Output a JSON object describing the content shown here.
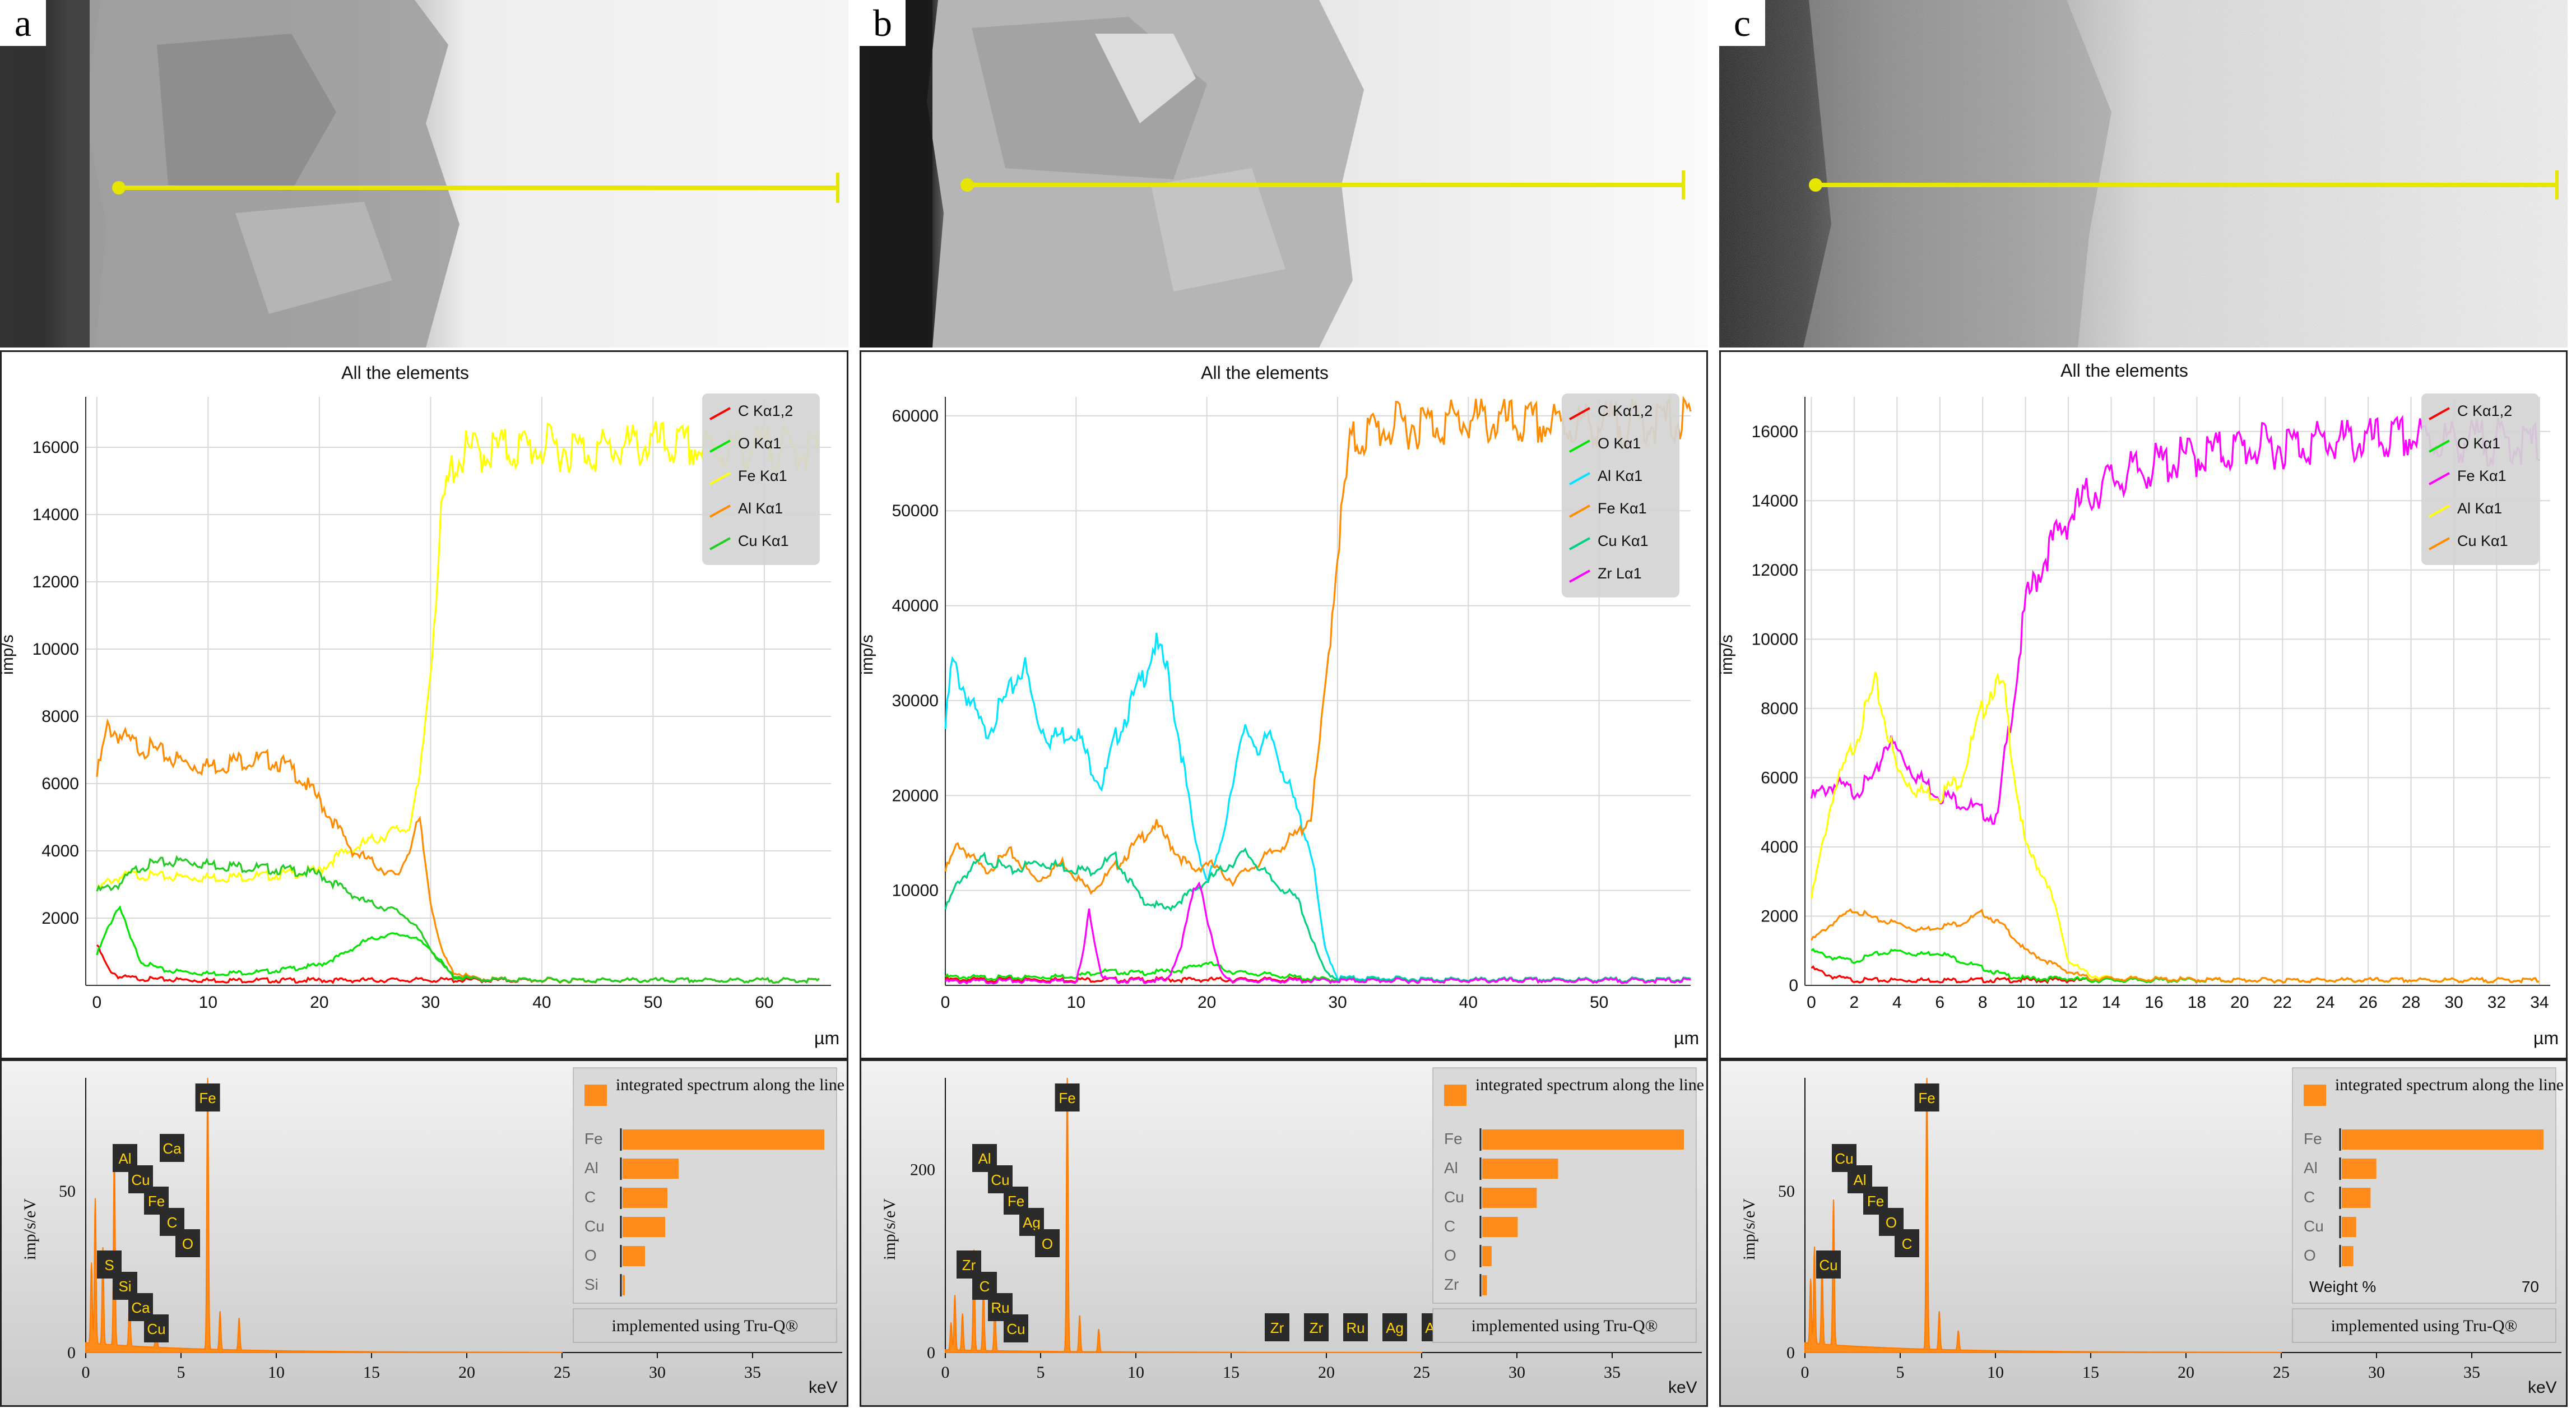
{
  "figure": {
    "panels": [
      {
        "label": "a",
        "chart_title": "All the elements",
        "y_axis_label": "imp/s",
        "x_unit": "µm",
        "x_ticks": [
          0,
          10,
          20,
          30,
          40,
          50,
          60
        ],
        "y_ticks": [
          2000,
          4000,
          6000,
          8000,
          10000,
          12000,
          14000,
          16000
        ],
        "spectrum_y_label": "imp/s/eV",
        "spectrum_y_ticks": [
          0,
          50
        ],
        "spectrum_x_ticks": [
          0,
          5,
          10,
          15,
          20,
          25,
          30,
          35
        ],
        "spectrum_x_unit": "keV",
        "peak_labels": [
          "Fe",
          "Al",
          "Cu",
          "Fe",
          "C",
          "O",
          "S",
          "Si",
          "Ca",
          "Cu",
          "Ca"
        ],
        "inset_title": "integrated spectrum along the line",
        "inset_rows": [
          "Fe",
          "Al",
          "C",
          "Cu",
          "O",
          "Si"
        ],
        "inset_values": [
          90,
          25,
          20,
          19,
          10,
          1
        ],
        "inset_footer": "implemented using Tru-Q®",
        "weight_label": "",
        "weight_max": ""
      },
      {
        "label": "b",
        "chart_title": "All the elements",
        "y_axis_label": "imp/s",
        "x_unit": "µm",
        "x_ticks": [
          0,
          10,
          20,
          30,
          40,
          50
        ],
        "y_ticks": [
          10000,
          20000,
          30000,
          40000,
          50000,
          60000
        ],
        "spectrum_y_label": "imp/s/eV",
        "spectrum_y_ticks": [
          0,
          200
        ],
        "spectrum_x_ticks": [
          0,
          5,
          10,
          15,
          20,
          25,
          30,
          35
        ],
        "spectrum_x_unit": "keV",
        "peak_labels": [
          "Fe",
          "Al",
          "Cu",
          "Fe",
          "Ag",
          "O",
          "Zr",
          "C",
          "Ru",
          "Cu",
          "Zr",
          "Zr",
          "Ru",
          "Ag",
          "Ag"
        ],
        "inset_title": "integrated spectrum along the line",
        "inset_rows": [
          "Fe",
          "Al",
          "Cu",
          "C",
          "O",
          "Zr"
        ],
        "inset_values": [
          85,
          32,
          23,
          15,
          4,
          2
        ],
        "inset_footer": "implemented using Tru-Q®",
        "weight_label": "",
        "weight_max": ""
      },
      {
        "label": "c",
        "chart_title": "All the elements",
        "y_axis_label": "imp/s",
        "x_unit": "µm",
        "x_ticks": [
          0,
          2,
          4,
          6,
          8,
          10,
          12,
          14,
          16,
          18,
          20,
          22,
          24,
          26,
          28,
          30,
          32,
          34
        ],
        "y_ticks": [
          0,
          2000,
          4000,
          6000,
          8000,
          10000,
          12000,
          14000,
          16000
        ],
        "spectrum_y_label": "imp/s/eV",
        "spectrum_y_ticks": [
          0,
          50
        ],
        "spectrum_x_ticks": [
          0,
          5,
          10,
          15,
          20,
          25,
          30,
          35
        ],
        "spectrum_x_unit": "keV",
        "peak_labels": [
          "Fe",
          "Cu",
          "Al",
          "Fe",
          "O",
          "C",
          "Cu"
        ],
        "inset_title": "integrated spectrum along the line",
        "inset_rows": [
          "Fe",
          "Al",
          "C",
          "Cu",
          "O"
        ],
        "inset_values": [
          70,
          12,
          10,
          5,
          4
        ],
        "inset_footer": "implemented using Tru-Q®",
        "weight_label": "Weight %",
        "weight_max": "70"
      }
    ]
  },
  "chart_data": [
    {
      "panel": "a",
      "type": "line",
      "title": "All the elements",
      "xlabel": "µm",
      "ylabel": "imp/s",
      "xlim": [
        -1,
        66
      ],
      "ylim": [
        0,
        17500
      ],
      "legend": "top-right",
      "series": [
        {
          "name": "C Kα1,2",
          "color": "#ff0000",
          "x": [
            0,
            1,
            2,
            5,
            10,
            20,
            30,
            40,
            50,
            65
          ],
          "y": [
            1200,
            500,
            250,
            180,
            150,
            150,
            160,
            150,
            150,
            150
          ]
        },
        {
          "name": "O Kα1",
          "color": "#00e600",
          "x": [
            0,
            1,
            2,
            3,
            4,
            6,
            10,
            15,
            20,
            22,
            24,
            26,
            28,
            30,
            32,
            34,
            40,
            50,
            65
          ],
          "y": [
            900,
            1700,
            2400,
            1400,
            700,
            450,
            350,
            400,
            600,
            900,
            1300,
            1500,
            1500,
            1100,
            250,
            180,
            160,
            150,
            150
          ]
        },
        {
          "name": "Fe Kα1",
          "color": "#ffff00",
          "x": [
            0,
            1,
            3,
            5,
            10,
            15,
            20,
            21,
            22,
            24,
            26,
            28,
            29,
            30,
            31,
            32,
            33,
            35,
            40,
            45,
            50,
            55,
            60,
            65
          ],
          "y": [
            2800,
            3100,
            3300,
            3250,
            3200,
            3250,
            3400,
            3700,
            3900,
            4200,
            4500,
            4700,
            6000,
            9500,
            14000,
            15500,
            15800,
            15900,
            16000,
            15900,
            16100,
            15900,
            16000,
            15900
          ]
        },
        {
          "name": "Al Kα1",
          "color": "#ff8c00",
          "x": [
            0,
            1,
            3,
            5,
            8,
            10,
            13,
            16,
            18,
            20,
            21,
            22,
            23,
            25,
            27,
            28,
            29,
            30,
            31,
            32,
            34,
            40,
            50,
            65
          ],
          "y": [
            6200,
            7700,
            7200,
            7000,
            6600,
            6500,
            6700,
            6700,
            6300,
            5500,
            5000,
            4500,
            4000,
            3600,
            3200,
            4000,
            4900,
            2500,
            1000,
            400,
            200,
            150,
            150,
            150
          ]
        },
        {
          "name": "Cu Kα1",
          "color": "#22cc22",
          "x": [
            0,
            1,
            2,
            3,
            4,
            6,
            8,
            10,
            12,
            14,
            16,
            18,
            20,
            22,
            24,
            26,
            27,
            28,
            29,
            30,
            31,
            32,
            34,
            40,
            50,
            65
          ],
          "y": [
            2800,
            2900,
            3000,
            3300,
            3550,
            3650,
            3700,
            3600,
            3550,
            3500,
            3450,
            3400,
            3300,
            2900,
            2500,
            2300,
            2200,
            2000,
            1600,
            1100,
            600,
            300,
            180,
            160,
            150,
            150
          ]
        }
      ]
    },
    {
      "panel": "b",
      "type": "line",
      "title": "All the elements",
      "xlabel": "µm",
      "ylabel": "imp/s",
      "xlim": [
        0,
        57
      ],
      "ylim": [
        0,
        62000
      ],
      "legend": "top-right",
      "series": [
        {
          "name": "C Kα1,2",
          "color": "#ff0000",
          "x": [
            0,
            10,
            20,
            30,
            40,
            57
          ],
          "y": [
            600,
            600,
            600,
            600,
            600,
            600
          ]
        },
        {
          "name": "O Kα1",
          "color": "#00e600",
          "x": [
            0,
            5,
            10,
            12,
            15,
            18,
            20,
            22,
            25,
            28,
            30,
            40,
            57
          ],
          "y": [
            900,
            800,
            1000,
            1500,
            1300,
            1600,
            2400,
            1400,
            1100,
            700,
            600,
            600,
            600
          ]
        },
        {
          "name": "Al Kα1",
          "color": "#00e5ff",
          "x": [
            0,
            0.5,
            1.5,
            3,
            5,
            6,
            7,
            8,
            10,
            11,
            12,
            13,
            15,
            16,
            17,
            18,
            19,
            20,
            21,
            22,
            23,
            24,
            25,
            26,
            27,
            28,
            29,
            30,
            40,
            57
          ],
          "y": [
            27000,
            34000,
            31000,
            26500,
            31000,
            34000,
            28000,
            26000,
            27000,
            23500,
            21000,
            26000,
            32000,
            36000,
            33000,
            25000,
            16000,
            11000,
            14000,
            22000,
            27000,
            25000,
            26000,
            22000,
            18000,
            14000,
            4000,
            800,
            600,
            600
          ]
        },
        {
          "name": "Fe Kα1",
          "color": "#ff8c00",
          "x": [
            0,
            1,
            3,
            5,
            7,
            9,
            11,
            12,
            14,
            16,
            18,
            19,
            20,
            22,
            24,
            26,
            27,
            28,
            29,
            30,
            31,
            32,
            33,
            35,
            40,
            45,
            50,
            57
          ],
          "y": [
            12000,
            15000,
            12000,
            14000,
            11000,
            13000,
            10000,
            11000,
            14000,
            17000,
            13500,
            12000,
            13000,
            11000,
            13000,
            15000,
            16000,
            18000,
            30000,
            46000,
            57000,
            58000,
            58500,
            59000,
            59500,
            59000,
            59000,
            59500
          ]
        },
        {
          "name": "Cu Kα1",
          "color": "#00d080",
          "x": [
            0,
            1,
            3,
            5,
            7,
            9,
            11,
            13,
            15,
            17,
            19,
            21,
            23,
            25,
            27,
            28,
            29,
            30,
            40,
            57
          ],
          "y": [
            8000,
            11000,
            13500,
            12000,
            13000,
            12500,
            12000,
            13500,
            9000,
            8000,
            10000,
            12000,
            14000,
            11000,
            9000,
            5000,
            1500,
            700,
            600,
            600
          ]
        },
        {
          "name": "Zr Lα1",
          "color": "#ff00ff",
          "x": [
            0,
            10,
            10.5,
            11,
            11.5,
            12,
            13,
            17,
            18,
            19,
            19.5,
            20,
            21,
            22,
            30,
            57
          ],
          "y": [
            400,
            500,
            3000,
            8000,
            4000,
            800,
            500,
            500,
            4000,
            10000,
            11000,
            7000,
            1500,
            500,
            500,
            500
          ]
        }
      ]
    },
    {
      "panel": "c",
      "type": "line",
      "title": "All the elements",
      "xlabel": "µm",
      "ylabel": "imp/s",
      "xlim": [
        -0.3,
        34.5
      ],
      "ylim": [
        0,
        17000
      ],
      "legend": "top-right",
      "series": [
        {
          "name": "C Kα1,2",
          "color": "#ff0000",
          "x": [
            0,
            1,
            2,
            5,
            10,
            20,
            34
          ],
          "y": [
            500,
            250,
            150,
            150,
            150,
            150,
            150
          ]
        },
        {
          "name": "O Kα1",
          "color": "#00e600",
          "x": [
            0,
            1,
            2,
            3,
            4,
            5,
            6,
            7,
            8,
            9,
            10,
            11,
            12,
            13,
            20,
            34
          ],
          "y": [
            1000,
            800,
            700,
            900,
            1000,
            900,
            950,
            700,
            500,
            300,
            200,
            200,
            200,
            150,
            150,
            150
          ]
        },
        {
          "name": "Fe Kα1",
          "color": "#ff00ff",
          "x": [
            0,
            1,
            2,
            3,
            3.5,
            4,
            5,
            6,
            7,
            8,
            8.7,
            9,
            9.5,
            10,
            11,
            12,
            13,
            14,
            16,
            18,
            20,
            22,
            24,
            26,
            28,
            30,
            32,
            34
          ],
          "y": [
            5400,
            5800,
            5600,
            6000,
            7100,
            6800,
            6000,
            5500,
            5300,
            5000,
            4800,
            6500,
            8500,
            11000,
            12500,
            13500,
            14200,
            14600,
            15000,
            15300,
            15500,
            15600,
            15700,
            15700,
            15800,
            15700,
            15700,
            15600
          ]
        },
        {
          "name": "Al Kα1",
          "color": "#ffff00",
          "x": [
            0,
            1,
            2,
            3,
            3.5,
            4,
            5,
            6,
            7,
            8,
            8.5,
            9,
            9.5,
            10,
            11,
            11.5,
            12,
            13,
            14,
            20,
            34
          ],
          "y": [
            2500,
            5500,
            7000,
            8700,
            7500,
            6200,
            5600,
            5500,
            6000,
            8000,
            8700,
            8500,
            6000,
            4000,
            3000,
            2000,
            700,
            300,
            200,
            150,
            150
          ]
        },
        {
          "name": "Cu Kα1",
          "color": "#ff8c00",
          "x": [
            0,
            1,
            2,
            3,
            4,
            5,
            6,
            7,
            8,
            9,
            10,
            11,
            12,
            13,
            20,
            34
          ],
          "y": [
            1300,
            1800,
            2200,
            1900,
            1800,
            1600,
            1700,
            1800,
            2100,
            1700,
            1000,
            700,
            400,
            200,
            150,
            150
          ]
        }
      ]
    }
  ]
}
